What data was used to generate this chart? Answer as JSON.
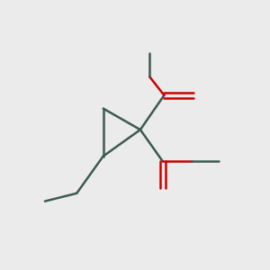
{
  "background_color": "#ebebeb",
  "bond_color": "#3d5a52",
  "oxygen_color": "#cc0000",
  "line_width": 1.8,
  "figsize": [
    3.0,
    3.0
  ],
  "dpi": 100,
  "xlim": [
    0,
    10
  ],
  "ylim": [
    0,
    10
  ]
}
